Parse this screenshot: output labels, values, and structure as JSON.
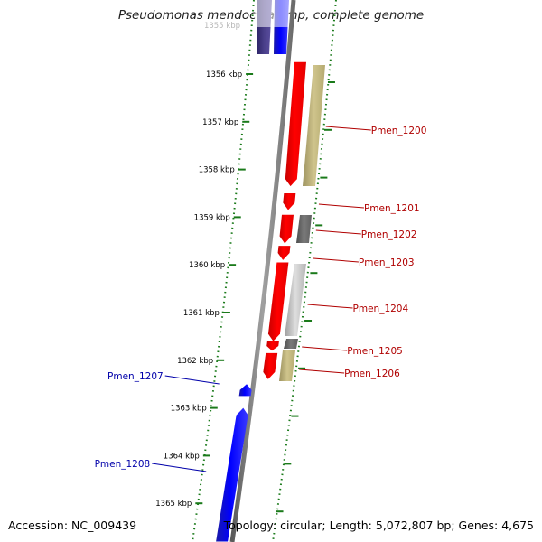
{
  "title": "Pseudomonas mendocina ymp, complete genome",
  "footer": {
    "accession": "Accession: NC_009439",
    "summary": "Topology: circular; Length: 5,072,807 bp; Genes: 4,675"
  },
  "colors": {
    "forward_gene": "#ff0000",
    "reverse_gene": "#0000ff",
    "label_forward": "#b00000",
    "label_reverse": "#0000aa",
    "tick": "#1a7a1a",
    "backbone": "#808080"
  },
  "scale": {
    "top_partial_label": "1355 kbp",
    "ticks": [
      {
        "label": "1356 kbp",
        "kbp": 1356
      },
      {
        "label": "1357 kbp",
        "kbp": 1357
      },
      {
        "label": "1358 kbp",
        "kbp": 1358
      },
      {
        "label": "1359 kbp",
        "kbp": 1359
      },
      {
        "label": "1360 kbp",
        "kbp": 1360
      },
      {
        "label": "1361 kbp",
        "kbp": 1361
      },
      {
        "label": "1362 kbp",
        "kbp": 1362
      },
      {
        "label": "1363 kbp",
        "kbp": 1363
      },
      {
        "label": "1364 kbp",
        "kbp": 1364
      },
      {
        "label": "1365 kbp",
        "kbp": 1365
      }
    ]
  },
  "genes": [
    {
      "name": "Pmen_1200",
      "strand": "forward",
      "start_kbp": 1355.75,
      "end_kbp": 1358.35
    },
    {
      "name": "Pmen_1201",
      "strand": "forward",
      "start_kbp": 1358.5,
      "end_kbp": 1358.85
    },
    {
      "name": "Pmen_1202",
      "strand": "forward",
      "start_kbp": 1358.95,
      "end_kbp": 1359.55
    },
    {
      "name": "Pmen_1203",
      "strand": "forward",
      "start_kbp": 1359.6,
      "end_kbp": 1359.9
    },
    {
      "name": "Pmen_1204",
      "strand": "forward",
      "start_kbp": 1359.95,
      "end_kbp": 1361.6
    },
    {
      "name": "Pmen_1205",
      "strand": "forward",
      "start_kbp": 1361.6,
      "end_kbp": 1361.8
    },
    {
      "name": "Pmen_1206",
      "strand": "forward",
      "start_kbp": 1361.85,
      "end_kbp": 1362.4
    },
    {
      "name": "Pmen_1207",
      "strand": "reverse",
      "start_kbp": 1362.5,
      "end_kbp": 1362.75
    },
    {
      "name": "Pmen_1208",
      "strand": "reverse",
      "start_kbp": 1363.0,
      "end_kbp": 1365.8
    }
  ]
}
